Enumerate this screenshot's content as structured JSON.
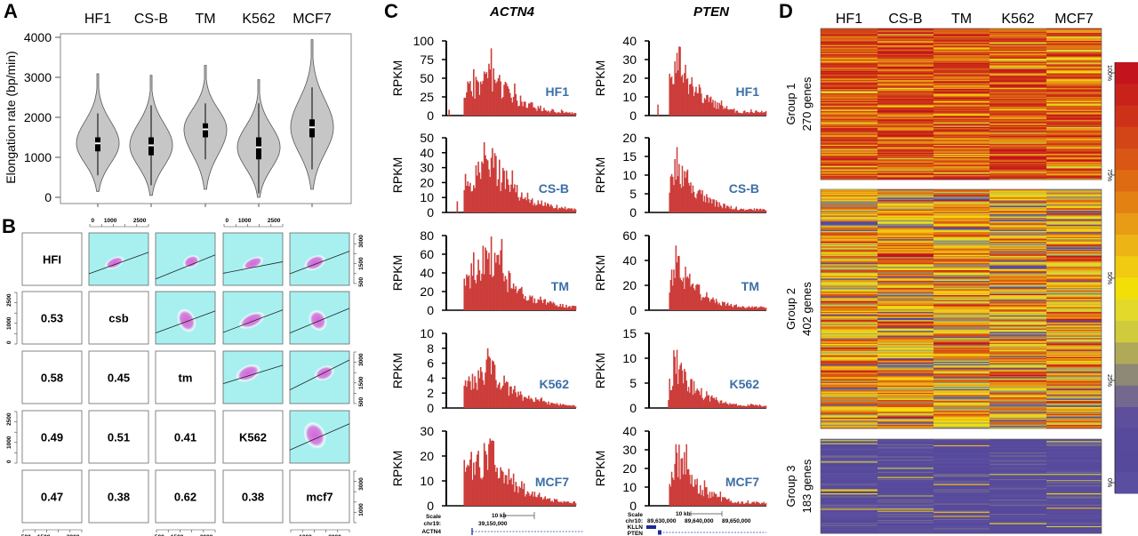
{
  "panel_labels": {
    "a": "A",
    "b": "B",
    "c": "C",
    "d": "D"
  },
  "cell_lines": [
    "HF1",
    "CS-B",
    "TM",
    "K562",
    "MCF7"
  ],
  "chart_data": [
    {
      "panel": "A",
      "type": "violin",
      "ylabel": "Elongation rate (bp/min)",
      "ylim": [
        0,
        4000
      ],
      "yticks": [
        "0",
        "1000",
        "2000",
        "3000",
        "4000"
      ],
      "categories": [
        "HF1",
        "CS-B",
        "TM",
        "K562",
        "MCF7"
      ],
      "series": [
        {
          "min": 150,
          "max": 3100,
          "median": 1350,
          "q1": 1150,
          "q3": 1500,
          "whisker_low": 550,
          "whisker_high": 2100
        },
        {
          "min": 50,
          "max": 3050,
          "median": 1300,
          "q1": 1050,
          "q3": 1500,
          "whisker_low": 300,
          "whisker_high": 2300
        },
        {
          "min": 200,
          "max": 3300,
          "median": 1700,
          "q1": 1500,
          "q3": 1850,
          "whisker_low": 950,
          "whisker_high": 2350
        },
        {
          "min": 0,
          "max": 2950,
          "median": 1250,
          "q1": 950,
          "q3": 1500,
          "whisker_low": 100,
          "whisker_high": 2350
        },
        {
          "min": 200,
          "max": 3950,
          "median": 1750,
          "q1": 1500,
          "q3": 1950,
          "whisker_low": 700,
          "whisker_high": 2750
        }
      ]
    },
    {
      "panel": "B",
      "type": "scatter-matrix",
      "diagonal_labels": [
        "HFI",
        "csb",
        "tm",
        "K562",
        "mcf7"
      ],
      "correlations": [
        [
          null,
          null,
          null,
          null,
          null
        ],
        [
          "0.53",
          null,
          null,
          null,
          null
        ],
        [
          "0.58",
          "0.45",
          null,
          null,
          null
        ],
        [
          "0.49",
          "0.51",
          "0.41",
          null,
          null
        ],
        [
          "0.47",
          "0.38",
          "0.62",
          "0.38",
          null
        ]
      ],
      "axis_ticks_a": [
        "0",
        "1000",
        "2500"
      ],
      "axis_ticks_b": [
        "500",
        "1500",
        "3000"
      ],
      "axis_ticks_c": [
        "1000",
        "3000"
      ],
      "density_colors": {
        "background": "#a8f0f0",
        "density": "#d964d9"
      }
    },
    {
      "panel": "C",
      "type": "bar",
      "ylabel": "RPKM",
      "bar_color": "#cc3d3a",
      "label_color": "#3b6fa6",
      "genes": [
        {
          "name": "ACTN4",
          "tracks": [
            {
              "cell": "HF1",
              "ylim": [
                0,
                100
              ],
              "yticks": [
                "0",
                "25",
                "50",
                "75",
                "100"
              ],
              "max_rpkm": 90
            },
            {
              "cell": "CS-B",
              "ylim": [
                0,
                50
              ],
              "yticks": [
                "0",
                "10",
                "20",
                "30",
                "40",
                "50"
              ],
              "max_rpkm": 47
            },
            {
              "cell": "TM",
              "ylim": [
                0,
                80
              ],
              "yticks": [
                "0",
                "20",
                "40",
                "60",
                "80"
              ],
              "max_rpkm": 79
            },
            {
              "cell": "K562",
              "ylim": [
                0,
                10
              ],
              "yticks": [
                "0",
                "2",
                "4",
                "6",
                "8",
                "10"
              ],
              "max_rpkm": 8
            },
            {
              "cell": "MCF7",
              "ylim": [
                0,
                30
              ],
              "yticks": [
                "0",
                "10",
                "20",
                "30"
              ],
              "max_rpkm": 27
            }
          ],
          "browser": {
            "scale": "Scale",
            "scale_bar": "10 kb",
            "chrom": "chr19:",
            "coords": [
              "39,150,000"
            ],
            "gene_tracks": [
              "ACTN4"
            ]
          }
        },
        {
          "name": "PTEN",
          "tracks": [
            {
              "cell": "HF1",
              "ylim": [
                0,
                40
              ],
              "yticks": [
                "0",
                "10",
                "20",
                "30",
                "40"
              ],
              "max_rpkm": 37
            },
            {
              "cell": "CS-B",
              "ylim": [
                0,
                20
              ],
              "yticks": [
                "0",
                "5",
                "10",
                "15",
                "20"
              ],
              "max_rpkm": 17.5
            },
            {
              "cell": "TM",
              "ylim": [
                0,
                60
              ],
              "yticks": [
                "0",
                "20",
                "40",
                "60"
              ],
              "max_rpkm": 52
            },
            {
              "cell": "K562",
              "ylim": [
                0,
                15
              ],
              "yticks": [
                "0",
                "5",
                "10",
                "15"
              ],
              "max_rpkm": 11.7
            },
            {
              "cell": "MCF7",
              "ylim": [
                0,
                40
              ],
              "yticks": [
                "0",
                "10",
                "20",
                "30",
                "40"
              ],
              "max_rpkm": 33
            }
          ],
          "browser": {
            "scale": "Scale",
            "scale_bar": "10 kb",
            "chrom": "chr10:",
            "coords": [
              "89,630,000",
              "89,640,000",
              "89,650,000"
            ],
            "gene_tracks": [
              "KLLN",
              "PTEN"
            ]
          }
        }
      ]
    },
    {
      "panel": "D",
      "type": "heatmap",
      "columns": [
        "HF1",
        "CS-B",
        "TM",
        "K562",
        "MCF7"
      ],
      "groups": [
        {
          "label": "Group 1",
          "genes_label": "270 genes",
          "genes": 270
        },
        {
          "label": "Group 2",
          "genes_label": "402 genes",
          "genes": 402
        },
        {
          "label": "Group 3",
          "genes_label": "183 genes",
          "genes": 183
        }
      ],
      "colorbar_ticks": [
        "100%",
        "75%",
        "50%",
        "25%",
        "0%"
      ],
      "palette_top_to_bottom": [
        "#c3141d",
        "#c8221b",
        "#cd3219",
        "#d34416",
        "#d95614",
        "#de6a12",
        "#e38212",
        "#e89b15",
        "#edb416",
        "#f1cb12",
        "#f2df08",
        "#e2d92a",
        "#cfcb3c",
        "#b0aa58",
        "#8e8876",
        "#73698f",
        "#5d4f9c",
        "#57499b",
        "#56499c",
        "#594ea0"
      ]
    }
  ]
}
